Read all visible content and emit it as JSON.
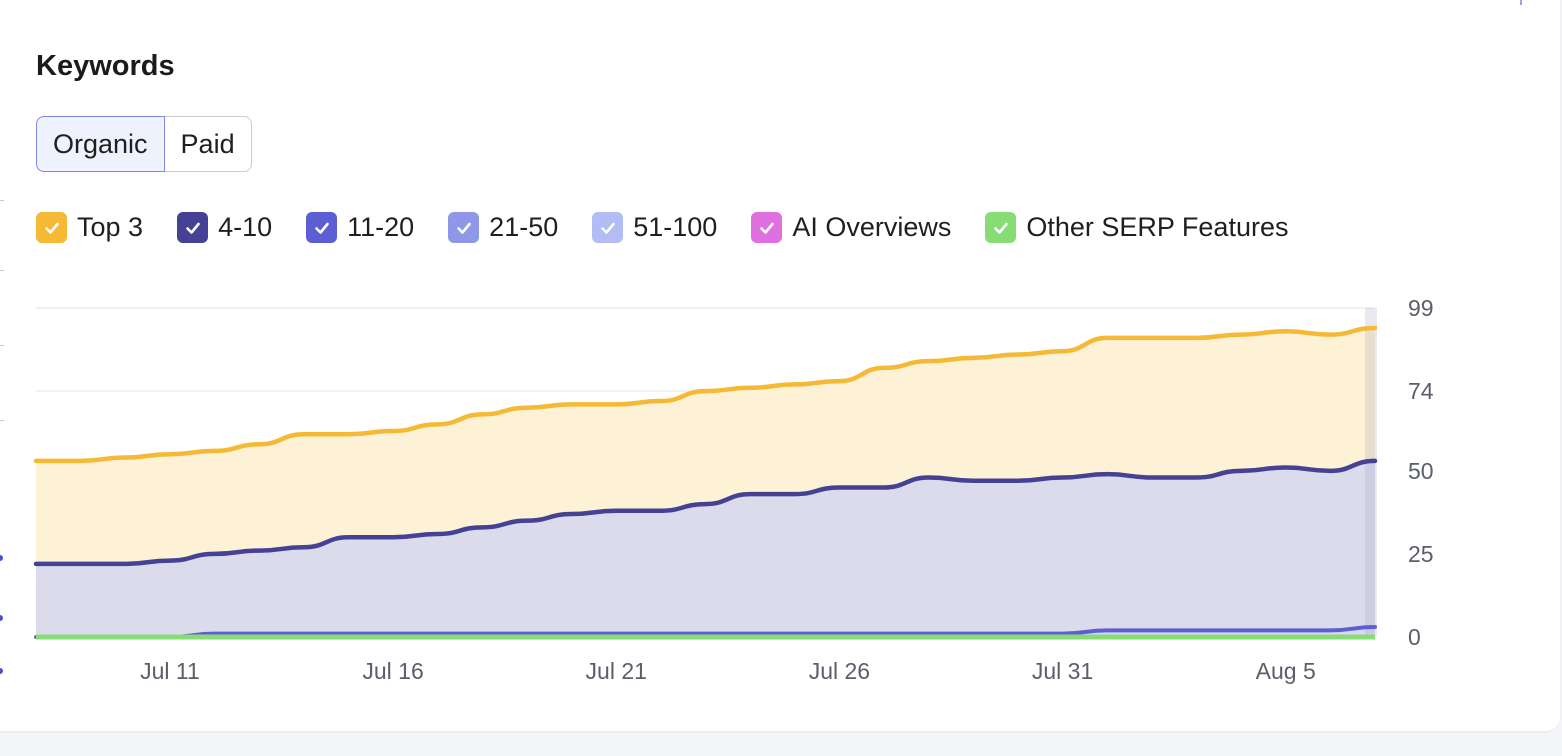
{
  "title": "Keywords",
  "toggle": {
    "organic": "Organic",
    "paid": "Paid",
    "active": "organic"
  },
  "colors": {
    "top3": "#f5b935",
    "pos4_10": "#454194",
    "pos11_20": "#5c5fd4",
    "pos21_50": "#8f98e8",
    "pos51_100": "#b4bcf5",
    "ai_overviews": "#e06fe0",
    "serp_features": "#87dc76"
  },
  "legend": [
    {
      "label": "Top 3",
      "color": "#f5b935",
      "icon": "check-icon"
    },
    {
      "label": "4-10",
      "color": "#454194",
      "icon": "check-icon"
    },
    {
      "label": "11-20",
      "color": "#5c5fd4",
      "icon": "check-icon"
    },
    {
      "label": "21-50",
      "color": "#8f98e8",
      "icon": "check-icon"
    },
    {
      "label": "51-100",
      "color": "#b4bcf5",
      "icon": "check-icon"
    },
    {
      "label": "AI Overviews",
      "color": "#e06fe0",
      "icon": "check-icon"
    },
    {
      "label": "Other SERP Features",
      "color": "#87dc76",
      "icon": "check-icon"
    }
  ],
  "chart_data": {
    "type": "area",
    "stacked": true,
    "x_start": "Jul 8",
    "x": [
      "Jul 8",
      "Jul 9",
      "Jul 10",
      "Jul 11",
      "Jul 12",
      "Jul 13",
      "Jul 14",
      "Jul 15",
      "Jul 16",
      "Jul 17",
      "Jul 18",
      "Jul 19",
      "Jul 20",
      "Jul 21",
      "Jul 22",
      "Jul 23",
      "Jul 24",
      "Jul 25",
      "Jul 26",
      "Jul 27",
      "Jul 28",
      "Jul 29",
      "Jul 30",
      "Jul 31",
      "Aug 1",
      "Aug 2",
      "Aug 3",
      "Aug 4",
      "Aug 5",
      "Aug 6",
      "Aug 7"
    ],
    "xticks": [
      "Jul 11",
      "Jul 16",
      "Jul 21",
      "Jul 26",
      "Jul 31",
      "Aug 5"
    ],
    "yticks": [
      0,
      25,
      50,
      74,
      99
    ],
    "ylim": [
      0,
      99
    ],
    "y_axis_position": "right",
    "grid": true,
    "series": [
      {
        "name": "11-20",
        "color": "#5c5fd4",
        "cumulative": [
          0,
          0,
          0,
          0,
          1,
          1,
          1,
          1,
          1,
          1,
          1,
          1,
          1,
          1,
          1,
          1,
          1,
          1,
          1,
          1,
          1,
          1,
          1,
          1,
          2,
          2,
          2,
          2,
          2,
          2,
          3
        ]
      },
      {
        "name": "4-10",
        "color": "#454194",
        "cumulative": [
          22,
          22,
          22,
          23,
          25,
          26,
          27,
          30,
          30,
          31,
          33,
          35,
          37,
          38,
          38,
          40,
          43,
          43,
          45,
          45,
          48,
          47,
          47,
          48,
          49,
          48,
          48,
          50,
          51,
          50,
          53
        ]
      },
      {
        "name": "Top 3",
        "color": "#f5b935",
        "cumulative": [
          53,
          53,
          54,
          55,
          56,
          58,
          61,
          61,
          62,
          64,
          67,
          69,
          70,
          70,
          71,
          74,
          75,
          76,
          77,
          81,
          83,
          84,
          85,
          86,
          90,
          90,
          90,
          91,
          92,
          91,
          93
        ]
      },
      {
        "name": "Other SERP Features",
        "color": "#87dc76",
        "cumulative": [
          0,
          0,
          0,
          0,
          0,
          0,
          0,
          0,
          0,
          0,
          0,
          0,
          0,
          0,
          0,
          0,
          0,
          0,
          0,
          0,
          0,
          0,
          0,
          0,
          0,
          0,
          0,
          0,
          0,
          0,
          0
        ]
      }
    ]
  }
}
